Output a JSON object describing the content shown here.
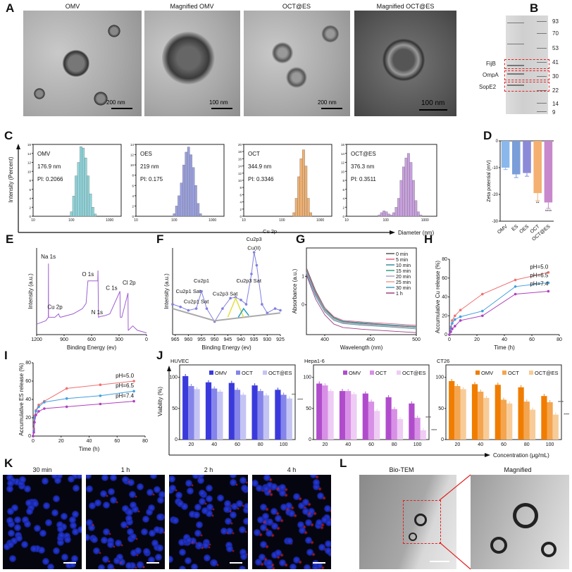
{
  "panels": {
    "A": "A",
    "B": "B",
    "C": "C",
    "D": "D",
    "E": "E",
    "F": "F",
    "G": "G",
    "H": "H",
    "I": "I",
    "J": "J",
    "K": "K",
    "L": "L"
  },
  "panel_a": {
    "titles": [
      "OMV",
      "Magnified OMV",
      "OCT@ES",
      "Magnified OCT@ES"
    ],
    "scales": [
      "200 nm",
      "100 nm",
      "200 nm",
      "100 nm"
    ]
  },
  "panel_b": {
    "markers": [
      "93",
      "70",
      "53",
      "41",
      "30",
      "22",
      "14",
      "9"
    ],
    "bands": [
      "FijB",
      "OmpA",
      "SopE2"
    ]
  },
  "panel_k": {
    "titles": [
      "30 min",
      "1 h",
      "2 h",
      "4 h"
    ]
  },
  "panel_l": {
    "titles": [
      "Bio-TEM",
      "Magnified"
    ]
  },
  "colors": {
    "highlight_box": "#e02020"
  },
  "chart_data": [
    {
      "type": "bar",
      "name": "OMV",
      "size": "176.9 nm",
      "pi": "PI: 0.2066",
      "color": "#8fd6dc",
      "xlabel": "Diameter (nm)",
      "ylabel": "Intensity (Percent)",
      "xscale": "log",
      "xlim": [
        10,
        2000
      ],
      "ylim": [
        0,
        16
      ],
      "yticks": [
        "0",
        "2",
        "4",
        "6",
        "8",
        "10",
        "12",
        "14",
        "16"
      ],
      "xticks": [
        "10",
        "100",
        "1000"
      ],
      "x": [
        100,
        115,
        133,
        154,
        178,
        205,
        237,
        274,
        316,
        365,
        422
      ],
      "values": [
        1,
        4.5,
        9,
        12,
        15.5,
        15.2,
        13,
        9,
        5,
        2,
        0.5
      ]
    },
    {
      "type": "bar",
      "name": "OES",
      "size": "219 nm",
      "pi": "PI: 0.175",
      "color": "#9aa0e0",
      "xscale": "log",
      "xlim": [
        10,
        2000
      ],
      "ylim": [
        0,
        14
      ],
      "yticks": [
        "0",
        "2",
        "4",
        "6",
        "8",
        "10",
        "12",
        "14"
      ],
      "xticks": [
        "10",
        "100",
        "1000"
      ],
      "x": [
        100,
        115,
        133,
        154,
        178,
        205,
        237,
        274,
        316,
        365,
        422,
        487
      ],
      "values": [
        0.5,
        2,
        4,
        6.5,
        10,
        12.5,
        13.5,
        12,
        9.5,
        6,
        2.5,
        0.5
      ]
    },
    {
      "type": "bar",
      "name": "OCT",
      "size": "344.9 nm",
      "pi": "PI: 0.3346",
      "color": "#f0b070",
      "xscale": "log",
      "xlim": [
        10,
        2000
      ],
      "ylim": [
        0,
        20
      ],
      "yticks": [
        "0",
        "2",
        "4",
        "6",
        "8",
        "10",
        "12",
        "14",
        "16",
        "18",
        "20"
      ],
      "xticks": [
        "10",
        "100",
        "1000"
      ],
      "x": [
        205,
        237,
        274,
        316,
        365,
        422,
        487,
        562
      ],
      "values": [
        1,
        5,
        11,
        16,
        18.5,
        14,
        5,
        1
      ]
    },
    {
      "type": "bar",
      "name": "OCT@ES",
      "size": "376.3 nm",
      "pi": "PI: 0.3511",
      "color": "#c9a0e0",
      "xscale": "log",
      "xlim": [
        10,
        2000
      ],
      "ylim": [
        0,
        16
      ],
      "yticks": [
        "0",
        "2",
        "4",
        "6",
        "8",
        "10",
        "12",
        "14",
        "16"
      ],
      "xticks": [
        "10",
        "100",
        "1000"
      ],
      "x": [
        68,
        78,
        90,
        104,
        120,
        139,
        160,
        185,
        214,
        247,
        285,
        330,
        381,
        440,
        508,
        587,
        678,
        783
      ],
      "values": [
        0.3,
        0.8,
        1.2,
        1,
        0.5,
        0.3,
        0.8,
        2,
        4,
        8,
        11,
        13,
        14,
        12,
        8,
        3.5,
        1,
        0.3
      ]
    },
    {
      "type": "bar",
      "ylabel": "Zeta potential (mV)",
      "ylim": [
        -30,
        0
      ],
      "yticks": [
        "0",
        "-10",
        "-20",
        "-30"
      ],
      "categories": [
        "OMV",
        "ES",
        "OES",
        "OCT",
        "OCT@ES"
      ],
      "values": [
        -10,
        -12.5,
        -12,
        -19.5,
        -23
      ],
      "errors": [
        0.7,
        1.2,
        1.2,
        2.8,
        2.2
      ],
      "colors": [
        "#8ab8ec",
        "#7a9ed8",
        "#8a8ad8",
        "#f4b070",
        "#c888cc"
      ],
      "significance": [
        "",
        "",
        "",
        "**",
        "****"
      ]
    },
    {
      "type": "line",
      "xlabel": "Binding Energy (ev)",
      "ylabel": "Intensity (a.u.)",
      "xlim": [
        1200,
        0
      ],
      "xticks": [
        "1200",
        "900",
        "600",
        "300",
        "0"
      ],
      "color": "#a060d0",
      "x": [
        1200,
        1100,
        1072,
        1071,
        1070,
        1000,
        960,
        950,
        940,
        800,
        700,
        660,
        640,
        532,
        530,
        525,
        500,
        450,
        400,
        290,
        287,
        285,
        270,
        202,
        200,
        198,
        150,
        100,
        0
      ],
      "values": [
        0.12,
        0.16,
        0.2,
        0.82,
        0.2,
        0.2,
        0.24,
        0.21,
        0.2,
        0.24,
        0.3,
        0.36,
        0.62,
        0.62,
        0.74,
        0.2,
        0.21,
        0.22,
        0.24,
        0.5,
        0.22,
        0.2,
        0.2,
        0.48,
        0.05,
        0.05,
        0.1,
        0.05,
        0.02
      ],
      "annotations": [
        "Na 1s",
        "Cu 2p",
        "O 1s",
        "N 1s",
        "C 1s",
        "Cl 2p"
      ]
    },
    {
      "type": "line",
      "xlabel": "Binding Energy (ev)",
      "ylabel": "Intensity (a.u.)",
      "xlim": [
        966,
        925
      ],
      "xticks": [
        "965",
        "960",
        "955",
        "950",
        "945",
        "940",
        "935",
        "930",
        "925"
      ],
      "color": "#8080e0",
      "x": [
        966,
        963,
        960,
        957,
        955,
        953,
        950,
        947,
        944,
        942,
        940,
        938,
        936,
        935,
        934,
        932,
        930,
        927,
        925
      ],
      "values": [
        0.35,
        0.32,
        0.28,
        0.3,
        0.5,
        0.3,
        0.15,
        0.3,
        0.42,
        0.43,
        0.4,
        0.35,
        0.7,
        0.95,
        0.8,
        0.35,
        0.25,
        0.3,
        0.28
      ],
      "annotations": [
        "Cu 2p",
        "Cu2p3",
        "Cu(II)",
        "Cu2p1",
        "Cu2p3 Sat",
        "Cu2p1 Sat",
        "Cu2p3 Sat",
        "Cu2p1 Sat"
      ]
    },
    {
      "type": "line",
      "xlabel": "Wavelength (nm)",
      "ylabel": "Absorbance (a.u.)",
      "xlim": [
        380,
        500
      ],
      "ylim": [
        -1.05,
        2
      ],
      "xticks": [
        "400",
        "450",
        "500"
      ],
      "yticks": [
        "0",
        "1"
      ],
      "x": [
        380,
        390,
        400,
        410,
        420,
        440,
        470,
        500
      ],
      "series": [
        {
          "name": "0 min",
          "color": "#555555",
          "values": [
            1.3,
            0.5,
            -0.1,
            -0.45,
            -0.6,
            -0.65,
            -0.72,
            -0.8
          ]
        },
        {
          "name": "5 min",
          "color": "#e06080",
          "values": [
            1.25,
            0.45,
            -0.1,
            -0.42,
            -0.55,
            -0.6,
            -0.66,
            -0.72
          ]
        },
        {
          "name": "10 min",
          "color": "#3a8aa0",
          "values": [
            1.2,
            0.4,
            -0.15,
            -0.45,
            -0.58,
            -0.63,
            -0.7,
            -0.76
          ]
        },
        {
          "name": "15 min",
          "color": "#30a080",
          "values": [
            1.18,
            0.38,
            -0.17,
            -0.47,
            -0.6,
            -0.66,
            -0.72,
            -0.78
          ]
        },
        {
          "name": "20 min",
          "color": "#b0a0d0",
          "values": [
            1.15,
            0.35,
            -0.2,
            -0.5,
            -0.62,
            -0.68,
            -0.74,
            -0.8
          ]
        },
        {
          "name": "25 min",
          "color": "#f0a090",
          "values": [
            1.12,
            0.32,
            -0.22,
            -0.52,
            -0.64,
            -0.7,
            -0.76,
            -0.82
          ]
        },
        {
          "name": "30 min",
          "color": "#40a0c0",
          "values": [
            1.1,
            0.3,
            -0.25,
            -0.55,
            -0.66,
            -0.72,
            -0.78,
            -0.85
          ]
        },
        {
          "name": "1 h",
          "color": "#a04080",
          "values": [
            1.05,
            0.2,
            -0.35,
            -0.68,
            -0.8,
            -0.86,
            -0.92,
            -0.98
          ]
        }
      ]
    },
    {
      "type": "line",
      "xlabel": "Time (h)",
      "ylabel": "Accumulative Cu release (%)",
      "xlim": [
        0,
        80
      ],
      "ylim": [
        0,
        80
      ],
      "xticks": [
        "0",
        "20",
        "40",
        "60",
        "80"
      ],
      "yticks": [
        "0",
        "20",
        "40",
        "60",
        "80"
      ],
      "x": [
        0,
        1,
        2,
        4,
        8,
        24,
        48,
        72
      ],
      "series": [
        {
          "name": "pH=5.0",
          "color": "#f07070",
          "values": [
            0,
            8,
            15,
            20,
            26,
            43,
            58,
            66
          ]
        },
        {
          "name": "pH=6.5",
          "color": "#40a0e0",
          "values": [
            0,
            7,
            12,
            16,
            19,
            25,
            51,
            55
          ]
        },
        {
          "name": "pH=7.4",
          "color": "#b040c0",
          "values": [
            0,
            3,
            6,
            9,
            15,
            20,
            43,
            46
          ]
        }
      ]
    },
    {
      "type": "line",
      "xlabel": "Time (h)",
      "ylabel": "Accumulative ES release (%)",
      "xlim": [
        0,
        80
      ],
      "ylim": [
        0,
        80
      ],
      "xticks": [
        "0",
        "20",
        "40",
        "60",
        "80"
      ],
      "yticks": [
        "0",
        "20",
        "40",
        "60",
        "80"
      ],
      "x": [
        0,
        0.5,
        1,
        2,
        4,
        8,
        24,
        48,
        72
      ],
      "series": [
        {
          "name": "pH=5.0",
          "color": "#f07070",
          "values": [
            0,
            8,
            22,
            28,
            34,
            38,
            52,
            56,
            60
          ]
        },
        {
          "name": "pH=6.5",
          "color": "#40a0e0",
          "values": [
            0,
            6,
            20,
            27,
            32,
            37,
            41,
            44,
            49
          ]
        },
        {
          "name": "pH=7.4",
          "color": "#b040c0",
          "values": [
            0,
            4,
            15,
            23,
            27,
            30,
            32,
            35,
            38
          ]
        }
      ]
    },
    {
      "type": "bar",
      "title": "HUVEC",
      "ylabel": "Viability (%)",
      "ylim": [
        0,
        120
      ],
      "yticks": [
        "0",
        "50",
        "100"
      ],
      "categories": [
        "20",
        "40",
        "60",
        "80",
        "100"
      ],
      "series": [
        {
          "name": "OMV",
          "color": "#3a3adc",
          "values": [
            102,
            92,
            91,
            87,
            80
          ]
        },
        {
          "name": "OCT",
          "color": "#8484ea",
          "values": [
            86,
            82,
            80,
            78,
            72
          ]
        },
        {
          "name": "OCT@ES",
          "color": "#c4c4f4",
          "values": [
            81,
            77,
            72,
            71,
            66
          ]
        }
      ],
      "significance": [
        "***",
        "****"
      ]
    },
    {
      "type": "bar",
      "title": "Hepa1-6",
      "ylim": [
        0,
        120
      ],
      "yticks": [
        "0",
        "50",
        "100"
      ],
      "categories": [
        "20",
        "40",
        "60",
        "80",
        "100"
      ],
      "series": [
        {
          "name": "OMV",
          "color": "#b04ccc",
          "values": [
            90,
            78,
            74,
            68,
            58
          ]
        },
        {
          "name": "OCT",
          "color": "#d890e6",
          "values": [
            87,
            78,
            61,
            49,
            35
          ]
        },
        {
          "name": "OCT@ES",
          "color": "#eeccf4",
          "values": [
            78,
            73,
            46,
            33,
            15
          ]
        }
      ],
      "significance": [
        "****",
        "****"
      ]
    },
    {
      "type": "bar",
      "title": "CT26",
      "xlabel": "Concentration (μg/mL)",
      "ylim": [
        0,
        120
      ],
      "yticks": [
        "0",
        "50",
        "100"
      ],
      "categories": [
        "20",
        "40",
        "60",
        "80",
        "100"
      ],
      "series": [
        {
          "name": "OMV",
          "color": "#f07d00",
          "values": [
            94,
            89,
            88,
            84,
            70
          ]
        },
        {
          "name": "OCT",
          "color": "#f4a550",
          "values": [
            86,
            77,
            64,
            61,
            60
          ]
        },
        {
          "name": "OCT@ES",
          "color": "#f8cc98",
          "values": [
            81,
            67,
            58,
            48,
            40
          ]
        }
      ],
      "significance": [
        "****",
        "****"
      ]
    }
  ]
}
